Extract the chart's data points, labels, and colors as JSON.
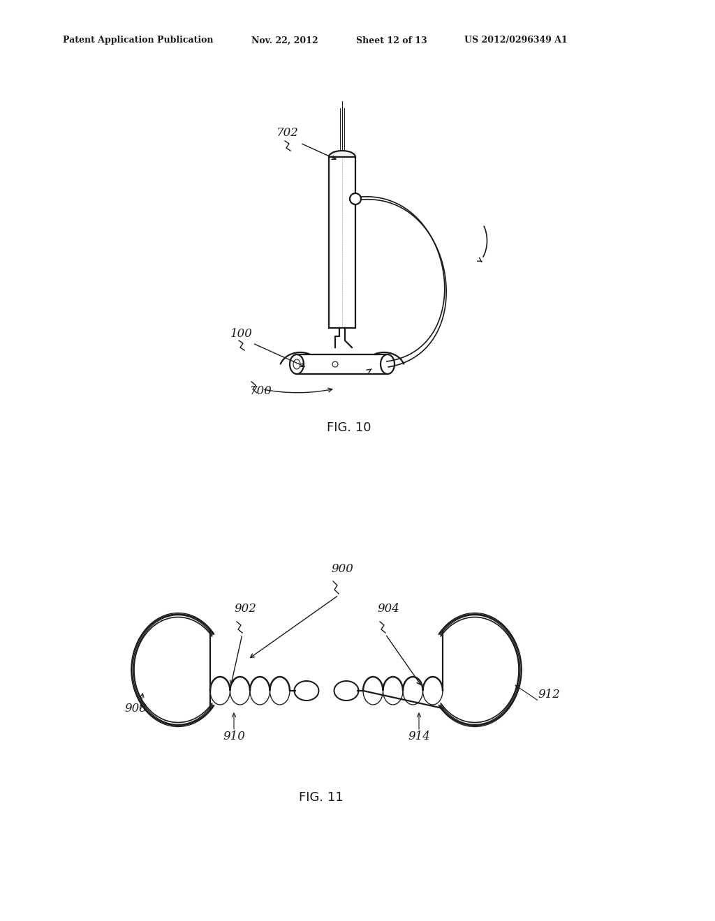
{
  "bg_color": "#ffffff",
  "header_text": "Patent Application Publication",
  "header_date": "Nov. 22, 2012",
  "header_sheet": "Sheet 12 of 13",
  "header_patent": "US 2012/0296349 A1",
  "fig10_label": "FIG. 10",
  "fig11_label": "FIG. 11",
  "label_702": "702",
  "label_100": "100",
  "label_700": "700",
  "label_900": "900",
  "label_902": "902",
  "label_904": "904",
  "label_908": "908",
  "label_910": "910",
  "label_912": "912",
  "label_914": "914",
  "line_color": "#1a1a1a",
  "line_width": 1.6
}
